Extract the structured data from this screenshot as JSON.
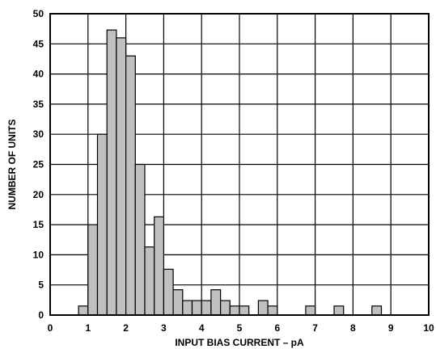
{
  "chart_data": {
    "type": "bar",
    "xlabel": "INPUT BIAS CURRENT – pA",
    "ylabel": "NUMBER OF UNITS",
    "xlim": [
      0,
      10
    ],
    "ylim": [
      0,
      50
    ],
    "x_ticks": [
      "0",
      "1",
      "2",
      "3",
      "4",
      "5",
      "6",
      "7",
      "8",
      "9",
      "10"
    ],
    "y_ticks": [
      "0",
      "5",
      "10",
      "15",
      "20",
      "25",
      "30",
      "35",
      "40",
      "45",
      "50"
    ],
    "grid": true,
    "bar_width": 0.25,
    "bars": [
      {
        "x": 0.75,
        "value": 1.5
      },
      {
        "x": 1.0,
        "value": 15
      },
      {
        "x": 1.25,
        "value": 30
      },
      {
        "x": 1.5,
        "value": 47.3
      },
      {
        "x": 1.75,
        "value": 46
      },
      {
        "x": 2.0,
        "value": 43
      },
      {
        "x": 2.25,
        "value": 25
      },
      {
        "x": 2.5,
        "value": 11.3
      },
      {
        "x": 2.75,
        "value": 16.3
      },
      {
        "x": 3.0,
        "value": 7.6
      },
      {
        "x": 3.25,
        "value": 4.2
      },
      {
        "x": 3.5,
        "value": 2.4
      },
      {
        "x": 3.75,
        "value": 2.4
      },
      {
        "x": 4.0,
        "value": 2.4
      },
      {
        "x": 4.25,
        "value": 4.2
      },
      {
        "x": 4.5,
        "value": 2.4
      },
      {
        "x": 4.75,
        "value": 1.5
      },
      {
        "x": 5.0,
        "value": 1.5
      },
      {
        "x": 5.5,
        "value": 2.4
      },
      {
        "x": 5.75,
        "value": 1.5
      },
      {
        "x": 6.75,
        "value": 1.5
      },
      {
        "x": 7.5,
        "value": 1.5
      },
      {
        "x": 8.5,
        "value": 1.5
      }
    ],
    "colors": {
      "bar_fill": "#c0c0c0",
      "bar_stroke": "#000000",
      "grid": "#000000",
      "background": "#ffffff"
    }
  }
}
